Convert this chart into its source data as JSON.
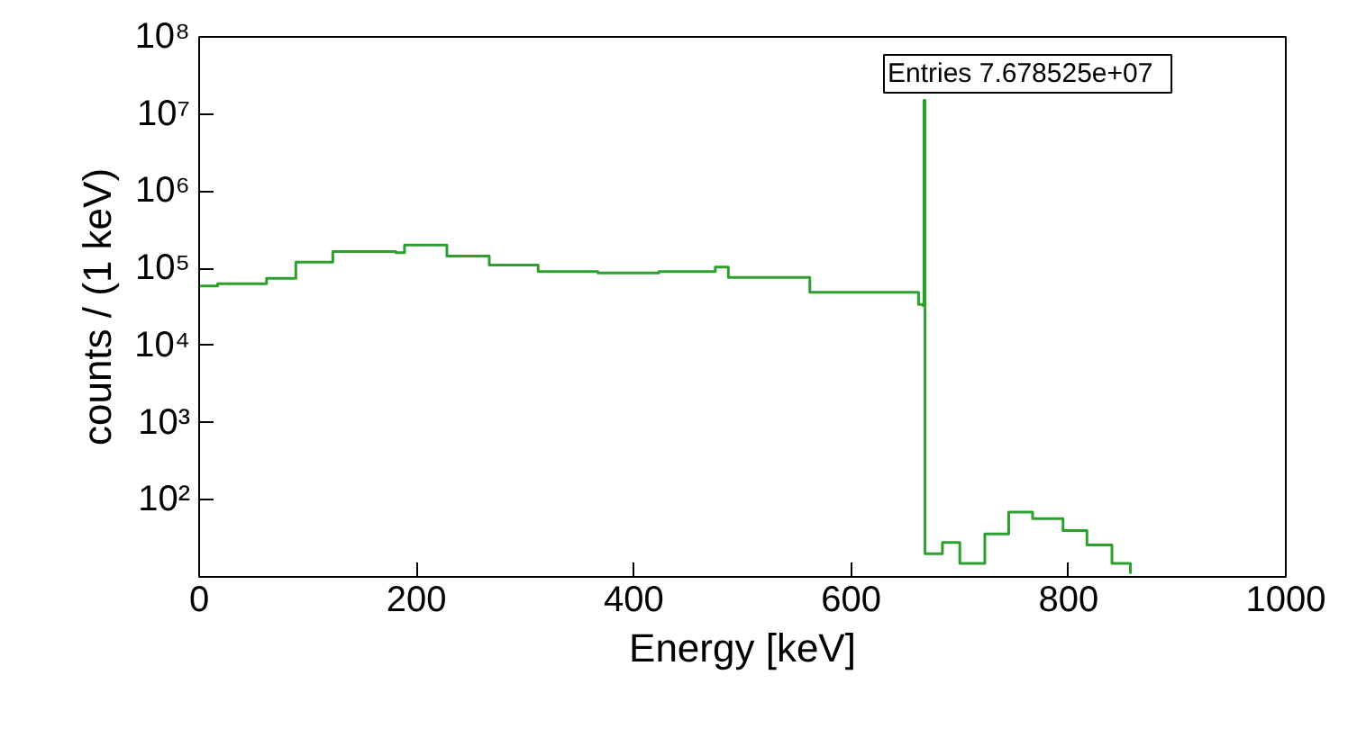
{
  "chart_data": {
    "type": "step",
    "xlabel": "Energy [keV]",
    "ylabel": "counts / (1 keV)",
    "log": "y",
    "grid": false,
    "annotations": [
      "Entries   7.678525e+07"
    ],
    "xlim": [
      0,
      1000
    ],
    "xticks": [
      0,
      200,
      400,
      600,
      800,
      1000
    ],
    "ylim": [
      10,
      100000000
    ],
    "yticks": [
      {
        "value": 100,
        "label": "10²"
      },
      {
        "value": 1000,
        "label": "10³"
      },
      {
        "value": 10000,
        "label": "10⁴"
      },
      {
        "value": 100000,
        "label": "10⁵"
      },
      {
        "value": 1000000,
        "label": "10⁶"
      },
      {
        "value": 10000000,
        "label": "10⁷"
      },
      {
        "value": 100000000,
        "label": "10⁸"
      }
    ],
    "series": [
      {
        "color": "#2ca02c",
        "x": [
          0,
          17,
          62,
          89,
          123,
          181,
          189,
          228,
          267,
          312,
          367,
          423,
          475,
          487,
          562,
          662,
          666,
          667,
          668,
          684,
          700,
          723,
          745,
          767,
          795,
          817,
          840,
          857
        ],
        "values": [
          59000,
          63000,
          74000,
          120000,
          165000,
          160000,
          200000,
          144000,
          110000,
          91000,
          87000,
          91000,
          104000,
          76000,
          49000,
          34000,
          33000,
          15000000,
          20,
          28,
          15,
          36,
          69,
          57,
          40,
          26,
          15,
          11
        ]
      }
    ]
  }
}
